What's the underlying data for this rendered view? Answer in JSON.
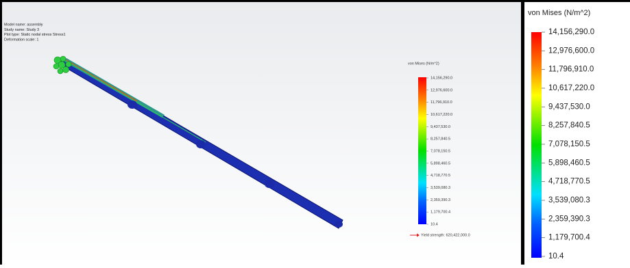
{
  "info": {
    "lines": [
      "Model name: assembly",
      "Study name: Study 3",
      "Plot type: Static nodal stress Stress1",
      "Deformation scale: 1"
    ]
  },
  "legend": {
    "title": "von Mises (N/m^2)",
    "values": [
      "14,156,290.0",
      "12,976,600.0",
      "11,796,910.0",
      "10,617,220.0",
      "9,437,530.0",
      "8,257,840.5",
      "7,078,150.5",
      "5,898,460.5",
      "4,718,770.5",
      "3,539,080.3",
      "2,359,390.3",
      "1,179,700.4",
      "10.4"
    ],
    "yield_strength": "Yield strength: 620,422,000.0"
  }
}
